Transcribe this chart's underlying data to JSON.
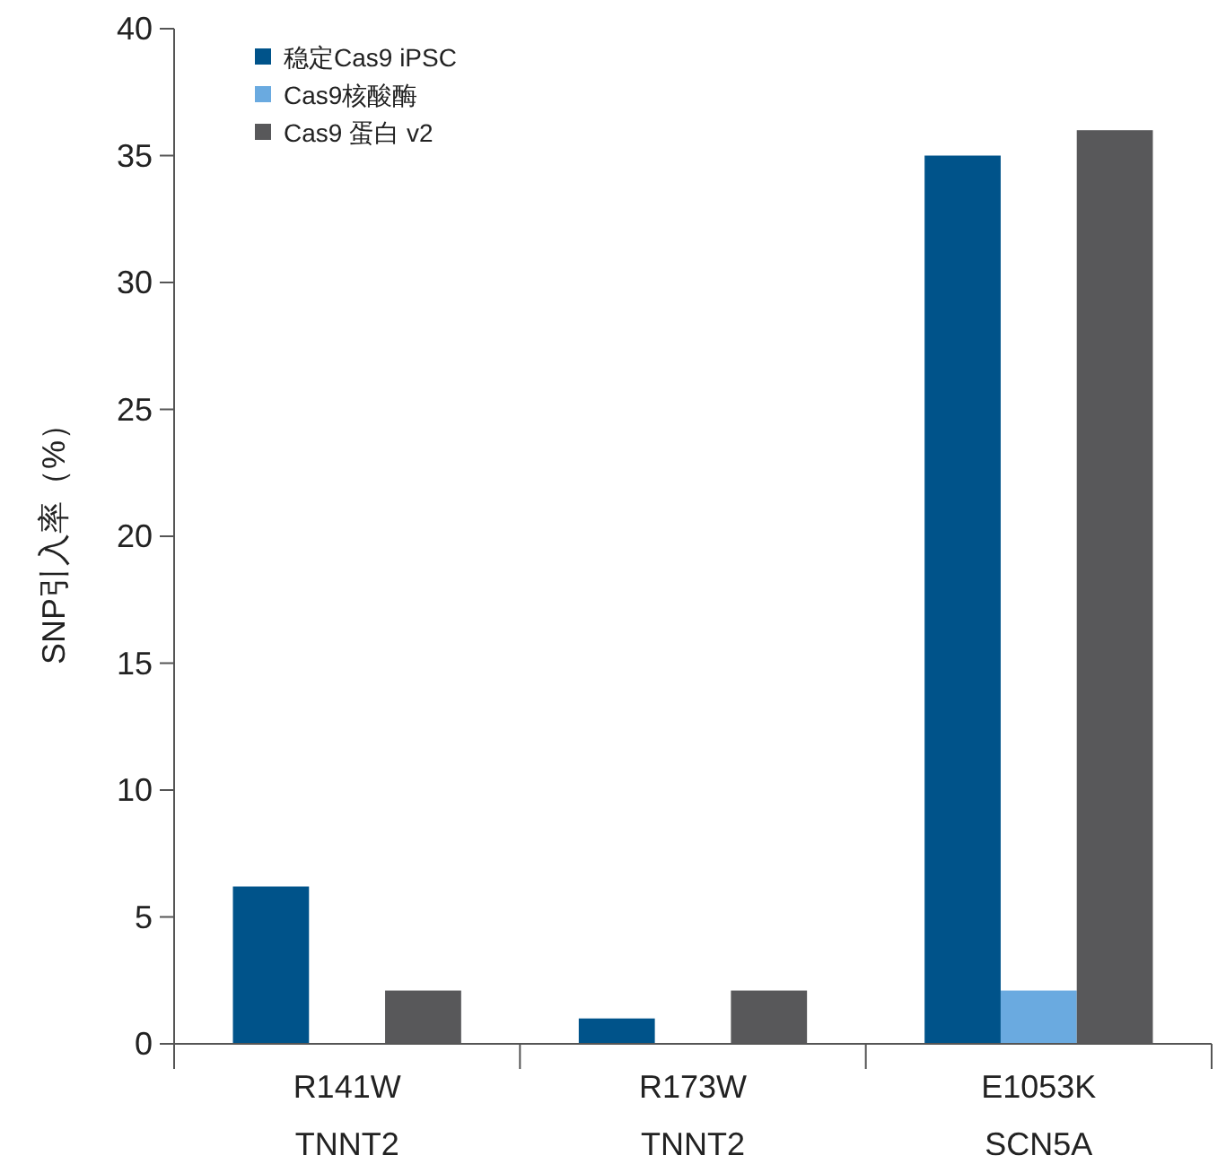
{
  "chart_data": {
    "type": "bar",
    "ylabel": "SNP引入率（%）",
    "categories": [
      "R141W\nTNNT2",
      "R173W\nTNNT2",
      "E1053K\nSCN5A"
    ],
    "series": [
      {
        "name": "稳定Cas9 iPSC",
        "color": "#00538a",
        "values": [
          6.2,
          1.0,
          35.0
        ]
      },
      {
        "name": "Cas9核酸酶",
        "color": "#6aaae0",
        "values": [
          0,
          0,
          2.1
        ]
      },
      {
        "name": "Cas9 蛋白 v2",
        "color": "#58585a",
        "values": [
          2.1,
          2.1,
          36.0
        ]
      }
    ],
    "ylim": [
      0,
      40
    ],
    "yticks": [
      0,
      5,
      10,
      15,
      20,
      25,
      30,
      35,
      40
    ],
    "legend": "top left",
    "grid": false
  }
}
